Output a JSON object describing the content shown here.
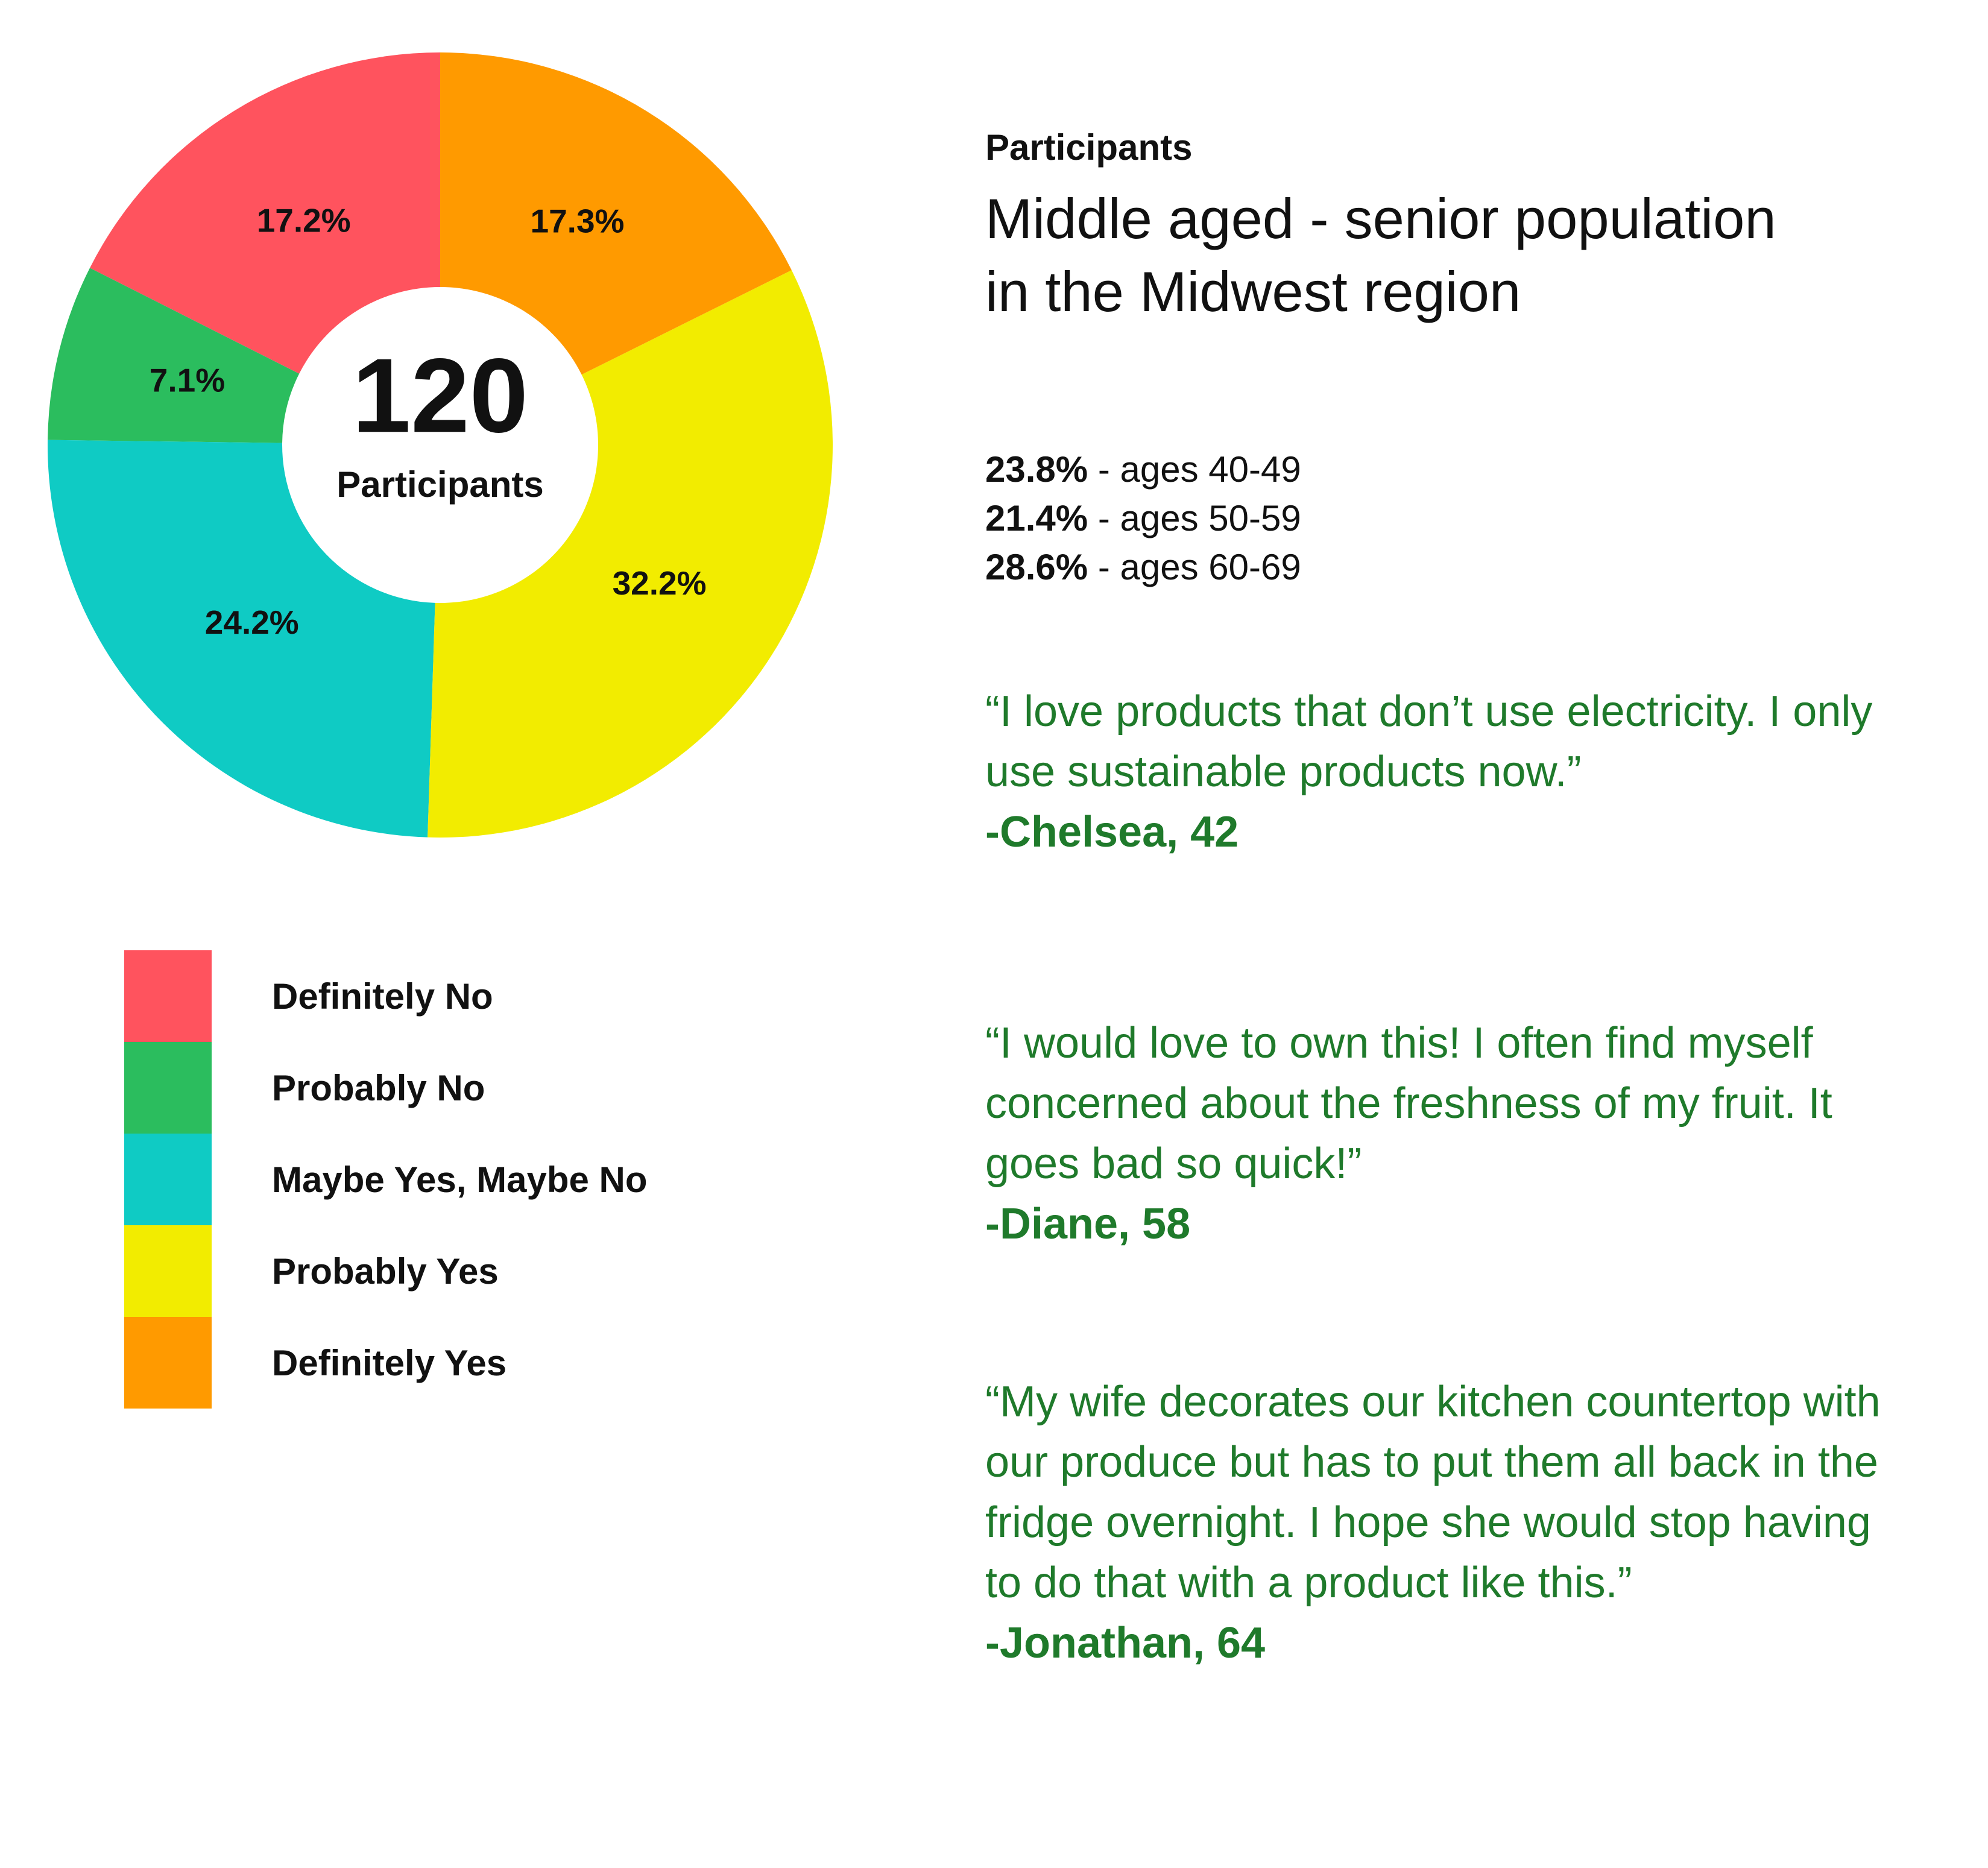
{
  "chart_data": {
    "type": "donut",
    "categories": [
      "Definitely No",
      "Probably No",
      "Maybe Yes, Maybe No",
      "Probably Yes",
      "Definitely Yes"
    ],
    "values": [
      17.2,
      7.1,
      24.2,
      32.2,
      17.3
    ],
    "value_labels": [
      "17.2%",
      "7.1%",
      "24.2%",
      "32.2%",
      "17.3%"
    ],
    "colors": [
      "#ff535e",
      "#2bbd5e",
      "#0fcbc4",
      "#f2ec00",
      "#ff9a00"
    ],
    "center_value": 120,
    "center_label": "Participants"
  },
  "participants": {
    "heading": "Participants",
    "description": "Middle aged - senior population in the Midwest region",
    "age_groups": [
      {
        "share": "23.8%",
        "range": "- ages 40-49"
      },
      {
        "share": "21.4%",
        "range": "- ages 50-59"
      },
      {
        "share": "28.6%",
        "range": "- ages 60-69"
      }
    ]
  },
  "quotes": [
    {
      "text": "“I love products that don’t use electricity. I only use sustainable products now.”",
      "author": "-Chelsea, 42"
    },
    {
      "text": "“I would love to own this! I often find myself concerned about the freshness of my fruit. It goes bad so quick!”",
      "author": "-Diane, 58"
    },
    {
      "text": "“My wife decorates our kitchen countertop with our produce but has to put them all back in the fridge overnight. I hope she would stop having to do that with a product like this.”",
      "author": "-Jonathan, 64"
    }
  ]
}
